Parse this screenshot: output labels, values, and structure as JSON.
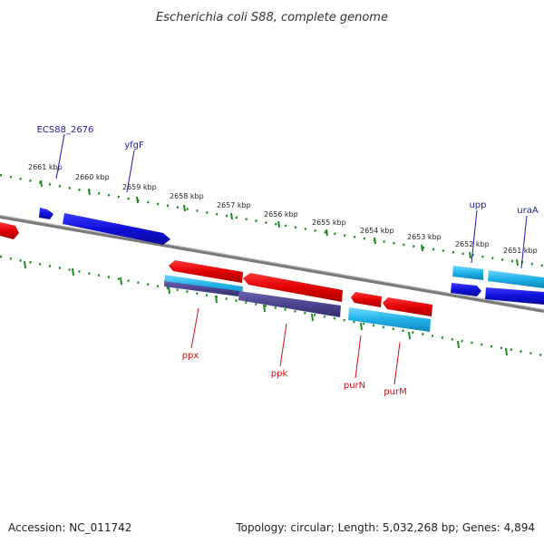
{
  "title": "Escherichia coli S88, complete genome",
  "footer": {
    "accession": "Accession: NC_011742",
    "summary": "Topology: circular; Length: 5,032,268 bp; Genes: 4,894"
  },
  "scale": {
    "ticks": [
      "2661 kbp",
      "2660 kbp",
      "2659 kbp",
      "2658 kbp",
      "2657 kbp",
      "2656 kbp",
      "2655 kbp",
      "2654 kbp",
      "2653 kbp",
      "2652 kbp",
      "2651 kbp"
    ]
  },
  "genes_top": [
    {
      "name": "ECS88_2676"
    },
    {
      "name": "yfgF"
    },
    {
      "name": "upp"
    },
    {
      "name": "uraA"
    }
  ],
  "genes_bottom": [
    {
      "name": "ppx"
    },
    {
      "name": "ppk"
    },
    {
      "name": "purN"
    },
    {
      "name": "purM"
    }
  ],
  "colors": {
    "forward_cds": "#1414d8",
    "reverse_cds": "#e00000",
    "cds_light": "#22b2e6",
    "cds_dark": "#4b4590",
    "backbone": "#7a7a7a",
    "ruler": "#1e8a1e"
  }
}
